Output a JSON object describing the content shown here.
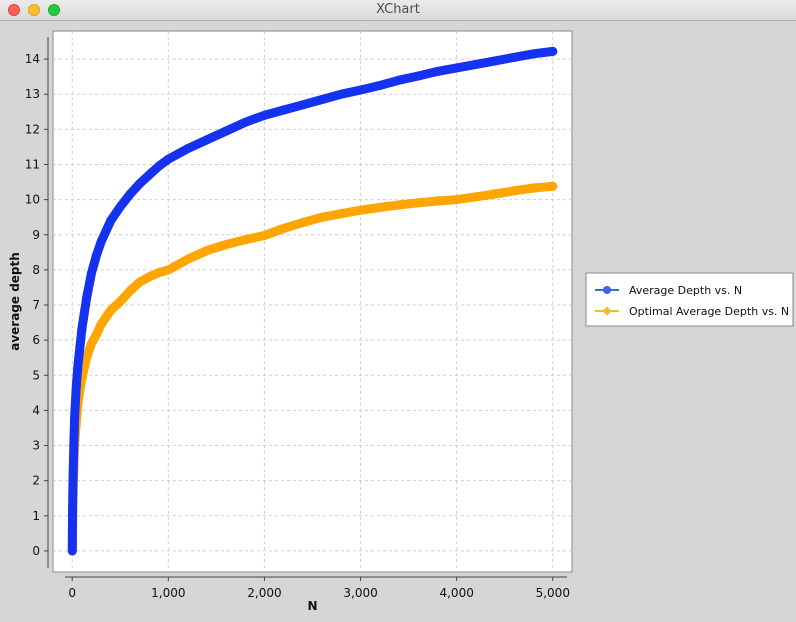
{
  "window": {
    "title": "XChart",
    "buttons": [
      {
        "name": "close",
        "color": "#fe5f57"
      },
      {
        "name": "minimize",
        "color": "#febc2e"
      },
      {
        "name": "zoom",
        "color": "#28c840"
      }
    ]
  },
  "chart_data": {
    "type": "line",
    "xlabel": "N",
    "ylabel": "average depth",
    "xlim": [
      -200,
      5200
    ],
    "ylim": [
      -0.6,
      14.8
    ],
    "x_ticks": [
      0,
      1000,
      2000,
      3000,
      4000,
      5000
    ],
    "x_tick_labels": [
      "0",
      "1,000",
      "2,000",
      "3,000",
      "4,000",
      "5,000"
    ],
    "y_ticks": [
      0,
      1,
      2,
      3,
      4,
      5,
      6,
      7,
      8,
      9,
      10,
      11,
      12,
      13,
      14
    ],
    "y_tick_labels": [
      "0",
      "1",
      "2",
      "3",
      "4",
      "5",
      "6",
      "7",
      "8",
      "9",
      "10",
      "11",
      "12",
      "13",
      "14"
    ],
    "grid": true,
    "legend_position": "outside-right",
    "series": [
      {
        "name": "Average Depth vs. N",
        "color": "#1432f0",
        "legend_color": "#3c64e6",
        "marker": "circle",
        "x": [
          1,
          2,
          4,
          8,
          16,
          25,
          40,
          60,
          80,
          100,
          150,
          200,
          250,
          300,
          400,
          500,
          600,
          700,
          800,
          900,
          1000,
          1200,
          1400,
          1600,
          1800,
          2000,
          2200,
          2400,
          2600,
          2800,
          3000,
          3200,
          3400,
          3600,
          3800,
          4000,
          4200,
          4400,
          4600,
          4800,
          5000
        ],
        "y": [
          0,
          0.5,
          1.2,
          2.0,
          3.0,
          3.8,
          4.6,
          5.3,
          5.8,
          6.3,
          7.2,
          7.9,
          8.4,
          8.8,
          9.4,
          9.8,
          10.15,
          10.45,
          10.7,
          10.95,
          11.15,
          11.45,
          11.7,
          11.95,
          12.2,
          12.4,
          12.55,
          12.7,
          12.85,
          13.0,
          13.12,
          13.25,
          13.4,
          13.52,
          13.65,
          13.75,
          13.85,
          13.95,
          14.05,
          14.15,
          14.22
        ]
      },
      {
        "name": "Optimal Average Depth vs. N",
        "color": "#ffa500",
        "legend_color": "#f5b82e",
        "marker": "diamond",
        "x": [
          1,
          2,
          4,
          8,
          16,
          25,
          40,
          60,
          80,
          100,
          150,
          200,
          250,
          300,
          400,
          500,
          600,
          700,
          800,
          900,
          1000,
          1200,
          1400,
          1600,
          1800,
          2000,
          2200,
          2400,
          2600,
          2800,
          3000,
          3200,
          3400,
          3600,
          3800,
          4000,
          4200,
          4400,
          4600,
          4800,
          5000
        ],
        "y": [
          0,
          0.5,
          1.0,
          1.6,
          2.3,
          3.0,
          3.6,
          4.2,
          4.6,
          4.9,
          5.5,
          5.9,
          6.15,
          6.45,
          6.85,
          7.1,
          7.4,
          7.65,
          7.8,
          7.92,
          8.0,
          8.3,
          8.55,
          8.72,
          8.86,
          8.98,
          9.18,
          9.35,
          9.5,
          9.6,
          9.7,
          9.78,
          9.85,
          9.91,
          9.96,
          10.0,
          10.08,
          10.16,
          10.25,
          10.33,
          10.38
        ]
      }
    ]
  }
}
